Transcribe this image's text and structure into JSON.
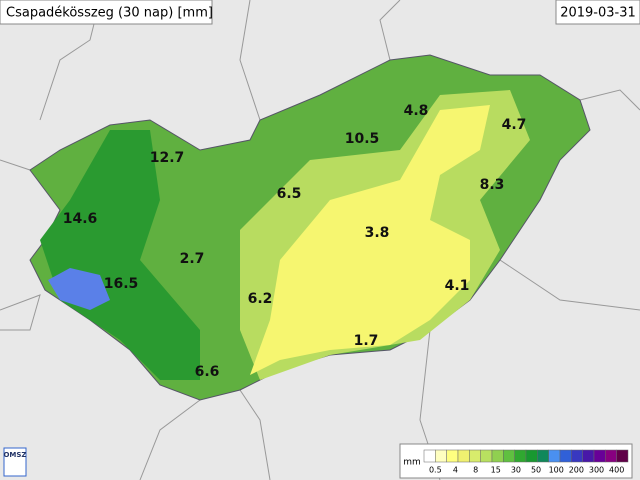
{
  "header": {
    "title": "Csapadékösszeg (30 nap) [mm]",
    "date": "2019-03-31"
  },
  "stations": [
    {
      "label": 12.7
    },
    {
      "label": 14.6
    },
    {
      "label": 16.5
    },
    {
      "label": 2.7
    },
    {
      "label": 6.2
    },
    {
      "label": 6.6
    },
    {
      "label": 6.5
    },
    {
      "label": 10.5
    },
    {
      "label": 4.8
    },
    {
      "label": 4.7
    },
    {
      "label": 8.3
    },
    {
      "label": 3.8
    },
    {
      "label": 4.1
    },
    {
      "label": 1.7
    }
  ],
  "legend": {
    "unit": "mm",
    "ticks": [
      0.5,
      4,
      8,
      15,
      30,
      50,
      100,
      200,
      300,
      400
    ],
    "colors": [
      "#ffffff",
      "#ffffc0",
      "#ffff80",
      "#f0f070",
      "#d8ec6c",
      "#b8e060",
      "#90d050",
      "#60c040",
      "#30a830",
      "#189830",
      "#10885a",
      "#4a90f0",
      "#3060d8",
      "#3838c0",
      "#4818a8",
      "#680098",
      "#880080",
      "#600048"
    ]
  },
  "logo": "OMSZ"
}
